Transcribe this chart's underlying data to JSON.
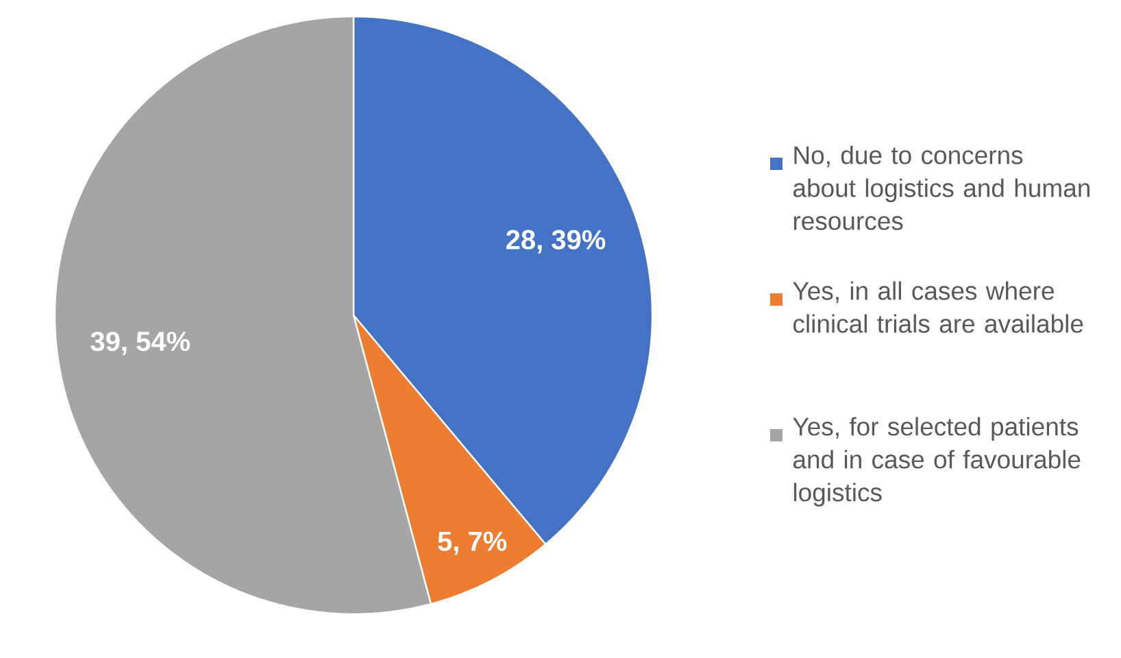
{
  "chart_data": {
    "type": "pie",
    "categories": [
      "No, due to concerns about logistics and human resources",
      "Yes, in all cases where clinical trials are available",
      "Yes, for selected patients and in case of favourable logistics"
    ],
    "values": [
      28,
      5,
      39
    ],
    "colors": [
      "#4472c4",
      "#ed7d31",
      "#a5a5a5"
    ],
    "value_labels": [
      "28, 39%",
      "5, 7%",
      "39, 54%"
    ],
    "legend": "right"
  }
}
